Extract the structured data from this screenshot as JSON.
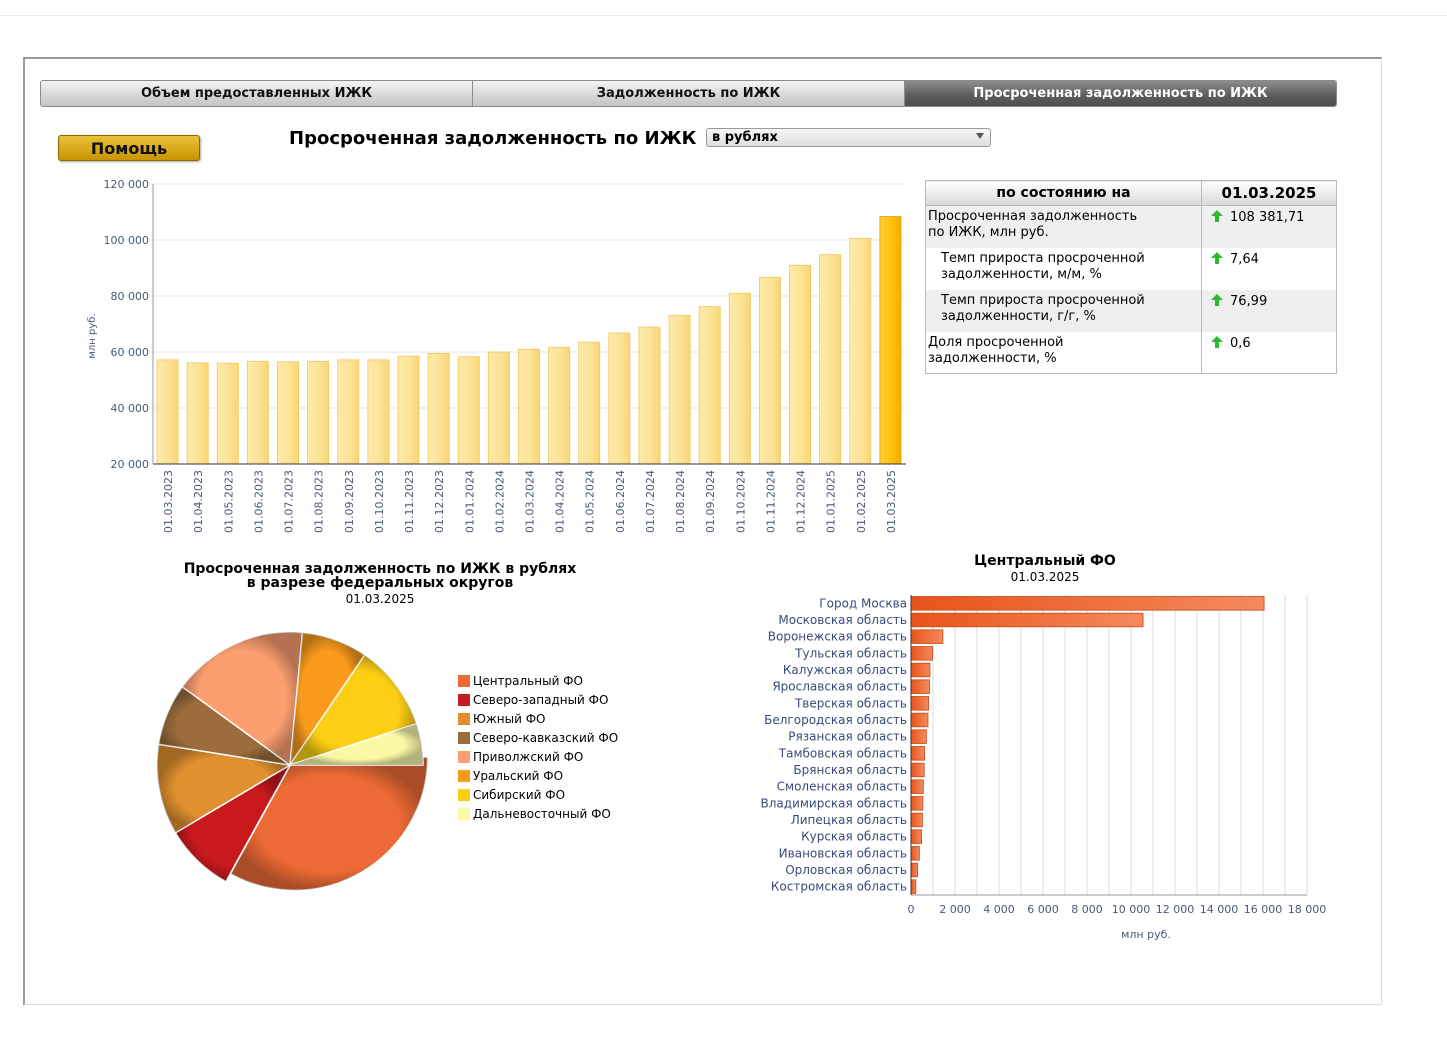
{
  "tabs": [
    {
      "label": "Объем предоставленных ИЖК",
      "active": false
    },
    {
      "label": "Задолженность по ИЖК",
      "active": false
    },
    {
      "label": "Просроченная задолженность по ИЖК",
      "active": true
    }
  ],
  "help_label": "Помощь",
  "page_title": "Просроченная задолженность по ИЖК",
  "unit_select": {
    "value": "в рублях"
  },
  "info_table": {
    "header_label": "по состоянию на",
    "header_date": "01.03.2025",
    "rows": [
      {
        "label_l1": "Просроченная задолженность",
        "label_l2": "по ИЖК, млн руб.",
        "value": "108 381,71",
        "trend": "up"
      },
      {
        "label_l1": "Темп прироста просроченной",
        "label_l2": "задолженности, м/м, %",
        "value": "7,64",
        "trend": "up"
      },
      {
        "label_l1": "Темп прироста просроченной",
        "label_l2": "задолженности, г/г, %",
        "value": "76,99",
        "trend": "up"
      },
      {
        "label_l1": "Доля просроченной",
        "label_l2": "задолженности, %",
        "value": "0,6",
        "trend": "up"
      }
    ]
  },
  "colors": {
    "bar_light": "#fde49a",
    "bar_highlight": "#ffc20e",
    "trend_up": "#2db82d",
    "hbar": "#ec6a35"
  },
  "pie": {
    "title_l1": "Просроченная задолженность по ИЖК в рублях",
    "title_l2": "в разрезе федеральных округов",
    "date": "01.03.2025"
  },
  "bar2": {
    "title": "Центральный ФО",
    "date": "01.03.2025"
  },
  "chart_data": [
    {
      "type": "bar",
      "ylabel": "млн руб.",
      "ylim": [
        20000,
        120000
      ],
      "yticks": [
        20000,
        40000,
        60000,
        80000,
        100000,
        120000
      ],
      "ytick_labels": [
        "20 000",
        "40 000",
        "60 000",
        "80 000",
        "100 000",
        "120 000"
      ],
      "grid": true,
      "categories": [
        "01.03.2023",
        "01.04.2023",
        "01.05.2023",
        "01.06.2023",
        "01.07.2023",
        "01.08.2023",
        "01.09.2023",
        "01.10.2023",
        "01.11.2023",
        "01.12.2023",
        "01.01.2024",
        "01.02.2024",
        "01.03.2024",
        "01.04.2024",
        "01.05.2024",
        "01.06.2024",
        "01.07.2024",
        "01.08.2024",
        "01.09.2024",
        "01.10.2024",
        "01.11.2024",
        "01.12.2024",
        "01.01.2025",
        "01.02.2025",
        "01.03.2025"
      ],
      "values": [
        57200,
        56100,
        56000,
        56700,
        56500,
        56700,
        57200,
        57200,
        58500,
        59500,
        58300,
        60000,
        61000,
        61700,
        63500,
        66800,
        68900,
        73100,
        76200,
        81000,
        86700,
        91000,
        94800,
        100600,
        108381.71
      ],
      "highlight_index": 24
    },
    {
      "type": "pie",
      "categories": [
        "Центральный ФО",
        "Северо-западный ФО",
        "Южный ФО",
        "Северо-кавказский ФО",
        "Приволжский ФО",
        "Уральский ФО",
        "Сибирский ФО",
        "Дальневосточный ФО"
      ],
      "values": [
        33.0,
        8.5,
        11.0,
        7.5,
        16.5,
        8.0,
        10.5,
        5.0
      ],
      "colors": [
        "#ec6a35",
        "#c8191d",
        "#e0902f",
        "#9c6c3c",
        "#fb9f70",
        "#f99a1b",
        "#fccf14",
        "#fbf9a6"
      ],
      "exploded": "Центральный ФО",
      "legend": "right"
    },
    {
      "type": "bar",
      "orientation": "horizontal",
      "xlabel": "млн руб.",
      "xlim": [
        0,
        18000
      ],
      "xticks": [
        0,
        2000,
        4000,
        6000,
        8000,
        10000,
        12000,
        14000,
        16000,
        18000
      ],
      "xtick_labels": [
        "0",
        "2 000",
        "4 000",
        "6 000",
        "8 000",
        "10 000",
        "12 000",
        "14 000",
        "16 000",
        "18 000"
      ],
      "grid": true,
      "categories": [
        "Город Москва",
        "Московская область",
        "Воронежская область",
        "Тульская область",
        "Калужская область",
        "Ярославская область",
        "Тверская область",
        "Белгородская область",
        "Рязанская область",
        "Тамбовская область",
        "Брянская область",
        "Смоленская область",
        "Владимирская область",
        "Липецкая область",
        "Курская область",
        "Ивановская область",
        "Орловская область",
        "Костромская область"
      ],
      "values": [
        16050,
        10550,
        1450,
        980,
        860,
        840,
        800,
        770,
        700,
        620,
        600,
        560,
        540,
        520,
        480,
        380,
        300,
        220
      ]
    }
  ]
}
